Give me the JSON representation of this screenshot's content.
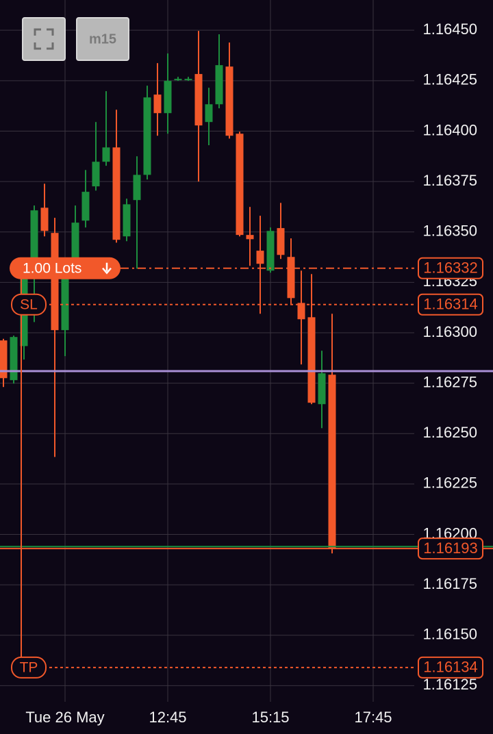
{
  "toolbar": {
    "timeframe": "m15"
  },
  "chart_data": {
    "type": "candlestick",
    "categories": [
      null,
      null,
      null,
      null,
      null,
      null,
      "Tue 26 May",
      null,
      null,
      null,
      null,
      null,
      null,
      null,
      null,
      null,
      "12:45",
      null,
      null,
      null,
      null,
      null,
      null,
      null,
      null,
      null,
      "15:15",
      null,
      null,
      null,
      null,
      null,
      null,
      null,
      null,
      null,
      "17:45",
      null,
      null,
      null,
      null
    ],
    "open": [
      1.162962,
      1.162765,
      1.162934,
      1.163291,
      1.16362,
      1.163495,
      1.163013,
      1.163366,
      1.163556,
      1.163726,
      1.163848,
      1.163919,
      1.163478,
      1.163658,
      1.163783,
      1.164181,
      1.164089,
      1.164255,
      1.164255,
      1.164283,
      1.164045,
      1.164133,
      1.16432,
      1.163987,
      1.163485,
      1.163407,
      1.163308,
      1.163519,
      1.163376,
      1.163148,
      1.163077,
      1.162646,
      1.162792,
      null,
      null,
      null,
      null,
      null,
      null,
      null,
      null
    ],
    "high": [
      1.16297,
      1.162986,
      1.163359,
      1.163631,
      1.163739,
      1.16357,
      1.163318,
      1.163631,
      1.163807,
      1.164045,
      1.164198,
      1.164106,
      1.163665,
      1.163875,
      1.164225,
      1.164337,
      1.164385,
      1.164269,
      1.164269,
      1.164497,
      1.164215,
      1.16448,
      1.164439,
      1.163997,
      1.163624,
      1.16358,
      1.163522,
      1.163644,
      1.163468,
      1.163308,
      1.163291,
      1.162911,
      1.163094,
      null,
      null,
      null,
      null,
      null,
      null,
      null,
      null
    ],
    "low": [
      1.162731,
      1.162748,
      1.162867,
      1.163053,
      1.163478,
      1.162384,
      1.162884,
      1.163342,
      1.163522,
      1.163705,
      1.163828,
      1.163447,
      1.163454,
      1.163318,
      1.16376,
      1.163977,
      1.163987,
      1.164249,
      1.164249,
      1.16375,
      1.16393,
      1.164113,
      1.163963,
      1.163478,
      1.163332,
      1.163094,
      1.163298,
      1.163366,
      1.163138,
      1.162843,
      1.162646,
      1.162527,
      1.161906,
      null,
      null,
      null,
      null,
      null,
      null,
      null,
      null
    ],
    "close": [
      1.162775,
      1.162979,
      1.163308,
      1.163607,
      1.163505,
      1.163013,
      1.163284,
      1.163546,
      1.163699,
      1.163848,
      1.163919,
      1.163461,
      1.163637,
      1.163783,
      1.164167,
      1.164089,
      1.164249,
      1.164259,
      1.164259,
      1.164028,
      1.164133,
      1.164327,
      1.163977,
      1.163485,
      1.163464,
      1.163342,
      1.163505,
      1.163386,
      1.163172,
      1.163067,
      1.162653,
      1.162799,
      1.16193,
      null,
      null,
      null,
      null,
      null,
      null,
      null,
      null
    ],
    "up_color": "#1d8f3e",
    "down_color": "#f2582a",
    "ylim": [
      1.16117,
      1.16465
    ],
    "yticks": [
      {
        "value": 1.16125,
        "label": "1.16125"
      },
      {
        "value": 1.1615,
        "label": "1.16150"
      },
      {
        "value": 1.16175,
        "label": "1.16175"
      },
      {
        "value": 1.162,
        "label": "1.16200"
      },
      {
        "value": 1.16225,
        "label": "1.16225"
      },
      {
        "value": 1.1625,
        "label": "1.16250"
      },
      {
        "value": 1.16275,
        "label": "1.16275"
      },
      {
        "value": 1.163,
        "label": "1.16300"
      },
      {
        "value": 1.16325,
        "label": "1.16325"
      },
      {
        "value": 1.1635,
        "label": "1.16350"
      },
      {
        "value": 1.16375,
        "label": "1.16375"
      },
      {
        "value": 1.164,
        "label": "1.16400"
      },
      {
        "value": 1.16425,
        "label": "1.16425"
      },
      {
        "value": 1.1645,
        "label": "1.16450"
      }
    ],
    "grid": true,
    "reference_lines": [
      {
        "value": 1.16281,
        "color": "#a98fd6"
      },
      {
        "value": 1.16194,
        "color": "#1d8f3e"
      }
    ],
    "current_price": {
      "value": 1.16193,
      "color": "#f2582a"
    },
    "order_levels": [
      {
        "label": "1.00 Lots",
        "value": 1.16332,
        "style": "dash-dot"
      },
      {
        "label": "SL",
        "value": 1.16314,
        "style": "dotted"
      },
      {
        "label": "TP",
        "value": 1.16134,
        "style": "dotted"
      }
    ],
    "order_color": "#f2582a"
  }
}
